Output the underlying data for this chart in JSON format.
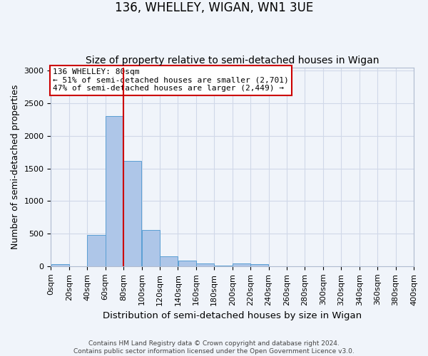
{
  "title": "136, WHELLEY, WIGAN, WN1 3UE",
  "subtitle": "Size of property relative to semi-detached houses in Wigan",
  "xlabel": "Distribution of semi-detached houses by size in Wigan",
  "ylabel": "Number of semi-detached properties",
  "footer_line1": "Contains HM Land Registry data © Crown copyright and database right 2024.",
  "footer_line2": "Contains public sector information licensed under the Open Government Licence v3.0.",
  "bin_labels": [
    "0sqm",
    "20sqm",
    "40sqm",
    "60sqm",
    "80sqm",
    "100sqm",
    "120sqm",
    "140sqm",
    "160sqm",
    "180sqm",
    "200sqm",
    "220sqm",
    "240sqm",
    "260sqm",
    "280sqm",
    "300sqm",
    "320sqm",
    "340sqm",
    "360sqm",
    "380sqm",
    "400sqm"
  ],
  "bin_edges": [
    0,
    20,
    40,
    60,
    80,
    100,
    120,
    140,
    160,
    180,
    200,
    220,
    240,
    260,
    280,
    300,
    320,
    340,
    360,
    380,
    400
  ],
  "bar_heights": [
    30,
    0,
    480,
    2300,
    1620,
    560,
    155,
    90,
    40,
    5,
    40,
    35,
    0,
    0,
    0,
    0,
    0,
    0,
    0,
    0
  ],
  "bar_color": "#aec6e8",
  "bar_edge_color": "#5a9fd4",
  "property_size": 80,
  "property_line_color": "#cc0000",
  "annotation_text": "136 WHELLEY: 80sqm\n← 51% of semi-detached houses are smaller (2,701)\n47% of semi-detached houses are larger (2,449) →",
  "annotation_box_color": "#ffffff",
  "annotation_box_edge_color": "#cc0000",
  "ylim": [
    0,
    3050
  ],
  "yticks": [
    0,
    500,
    1000,
    1500,
    2000,
    2500,
    3000
  ],
  "grid_color": "#d0d8e8",
  "background_color": "#f0f4fa",
  "title_fontsize": 12,
  "subtitle_fontsize": 10,
  "axis_label_fontsize": 9,
  "tick_fontsize": 8
}
